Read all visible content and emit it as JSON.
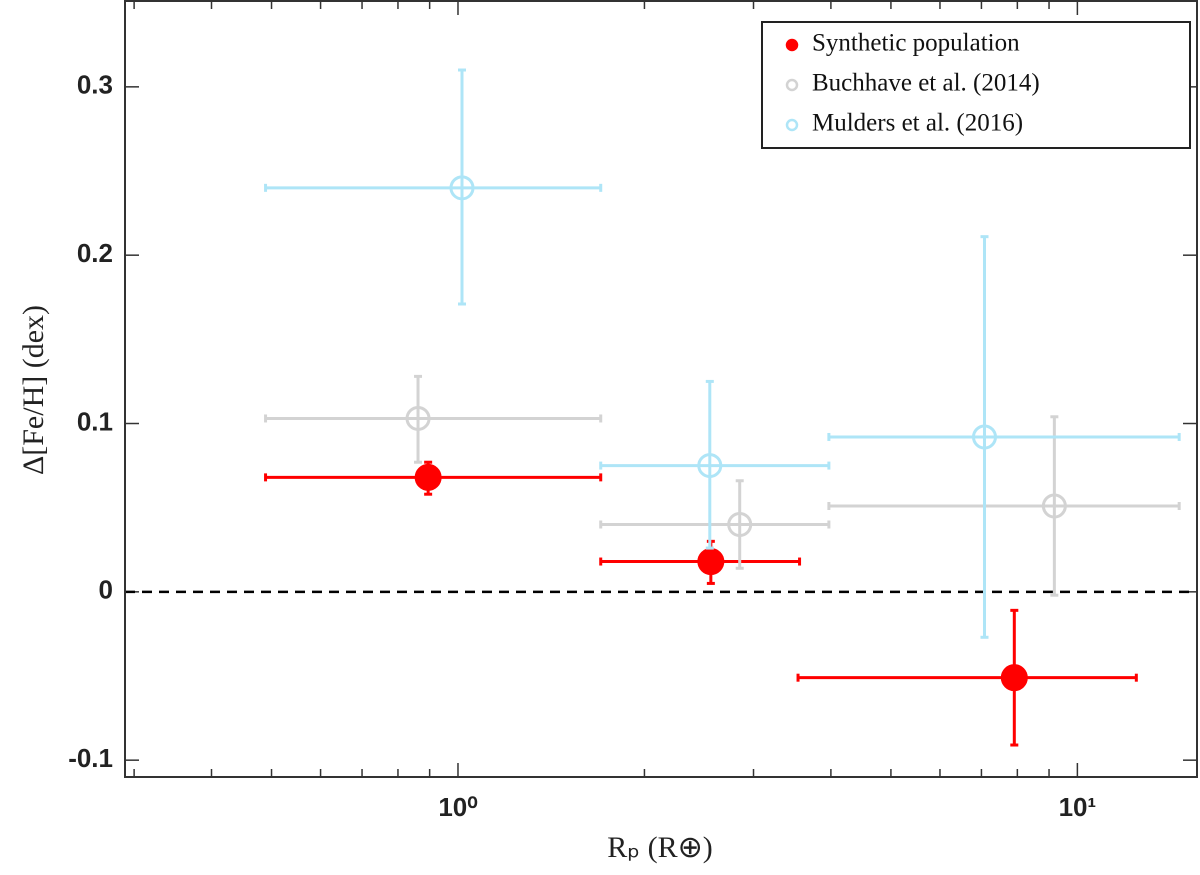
{
  "chart_data": {
    "type": "errorbar",
    "xlabel": "Rₚ (R⊕)",
    "ylabel": "Δ[Fe/H] (dex)",
    "xscale": "log",
    "xlim": [
      0.29,
      15.6
    ],
    "xticks": [
      {
        "value": 1,
        "label": "10⁰"
      },
      {
        "value": 10,
        "label": "10¹"
      }
    ],
    "ylim": [
      -0.11,
      0.351
    ],
    "yticks": [
      -0.1,
      0,
      0.1,
      0.2,
      0.3
    ],
    "reference_line": {
      "y": 0,
      "style": "dashed",
      "color": "#000000"
    },
    "legend": "upper right",
    "series": [
      {
        "name": "Synthetic population",
        "color": "#ff0000",
        "marker": "filled",
        "x": [
          0.895,
          2.56,
          7.91
        ],
        "values": [
          0.068,
          0.018,
          -0.051
        ],
        "x_low": [
          0.489,
          1.7,
          3.54
        ],
        "x_high": [
          1.7,
          3.56,
          12.45
        ],
        "y_low": [
          0.058,
          0.005,
          -0.091
        ],
        "y_high": [
          0.077,
          0.03,
          -0.011
        ]
      },
      {
        "name": "Buchhave et al. (2014)",
        "color": "#d3d3d3",
        "marker": "open",
        "x": [
          0.862,
          2.85,
          9.18
        ],
        "values": [
          0.103,
          0.04,
          0.051
        ],
        "x_low": [
          0.489,
          1.7,
          3.97
        ],
        "x_high": [
          1.7,
          3.97,
          14.6
        ],
        "y_low": [
          0.077,
          0.014,
          -0.002
        ],
        "y_high": [
          0.128,
          0.066,
          0.104
        ]
      },
      {
        "name": "Mulders et al. (2016)",
        "color": "#aee5f7",
        "marker": "open",
        "x": [
          1.015,
          2.55,
          7.08
        ],
        "values": [
          0.24,
          0.075,
          0.092
        ],
        "x_low": [
          0.489,
          1.7,
          3.97
        ],
        "x_high": [
          1.7,
          3.97,
          14.6
        ],
        "y_low": [
          0.171,
          0.026,
          -0.027
        ],
        "y_high": [
          0.31,
          0.125,
          0.211
        ]
      }
    ]
  }
}
